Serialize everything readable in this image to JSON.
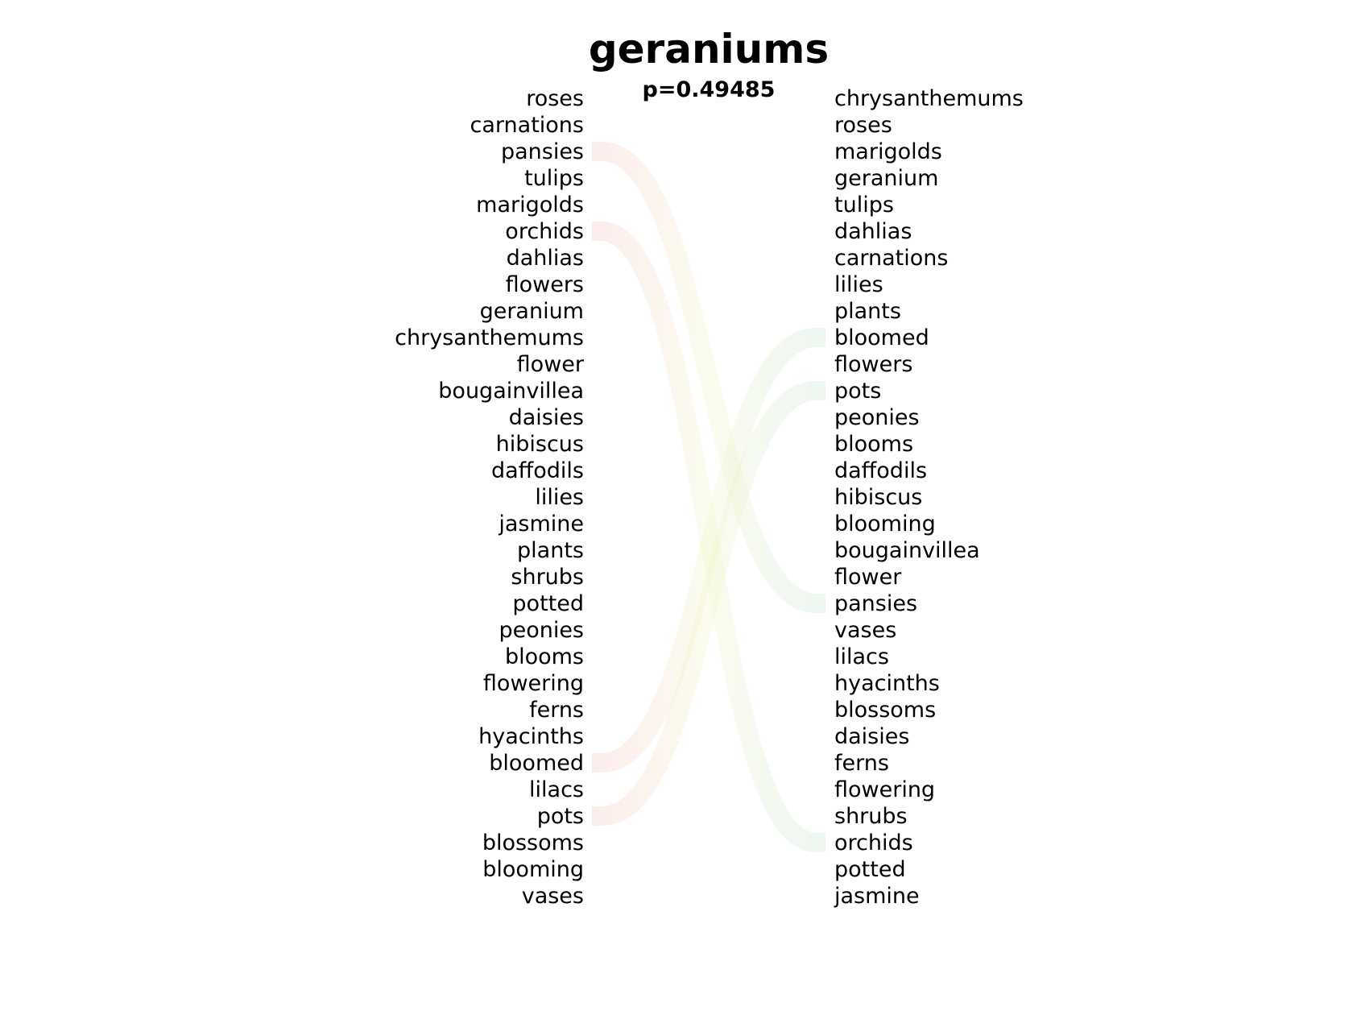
{
  "chart_data": {
    "type": "bump",
    "title": "geraniums",
    "subtitle": "p=0.49485",
    "left_words": [
      "roses",
      "carnations",
      "pansies",
      "tulips",
      "marigolds",
      "orchids",
      "dahlias",
      "flowers",
      "geranium",
      "chrysanthemums",
      "flower",
      "bougainvillea",
      "daisies",
      "hibiscus",
      "daffodils",
      "lilies",
      "jasmine",
      "plants",
      "shrubs",
      "potted",
      "peonies",
      "blooms",
      "flowering",
      "ferns",
      "hyacinths",
      "bloomed",
      "lilacs",
      "pots",
      "blossoms",
      "blooming",
      "vases"
    ],
    "right_words": [
      "chrysanthemums",
      "roses",
      "marigolds",
      "geranium",
      "tulips",
      "dahlias",
      "carnations",
      "lilies",
      "plants",
      "bloomed",
      "flowers",
      "pots",
      "peonies",
      "blooms",
      "daffodils",
      "hibiscus",
      "blooming",
      "bougainvillea",
      "flower",
      "pansies",
      "vases",
      "lilacs",
      "hyacinths",
      "blossoms",
      "daisies",
      "ferns",
      "flowering",
      "shrubs",
      "orchids",
      "potted",
      "jasmine"
    ],
    "links": [
      {
        "word": "pansies",
        "left_rank": 3,
        "right_rank": 20
      },
      {
        "word": "orchids",
        "left_rank": 6,
        "right_rank": 29
      },
      {
        "word": "bloomed",
        "left_rank": 26,
        "right_rank": 10
      },
      {
        "word": "pots",
        "left_rank": 28,
        "right_rank": 12
      }
    ],
    "colors": {
      "text": "#000000",
      "link_left": "#f5c2c2",
      "link_mid": "#f2f5c8",
      "link_right": "#c6e3d3"
    }
  }
}
